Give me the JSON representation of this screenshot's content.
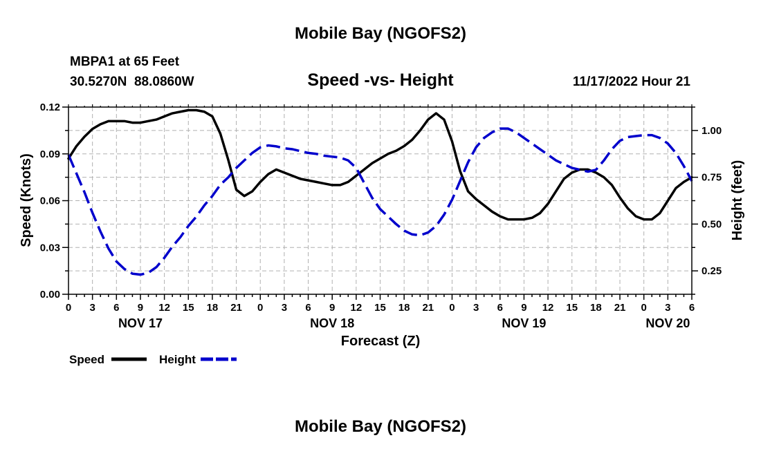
{
  "chart_data": {
    "type": "line",
    "title": "Mobile Bay (NGOFS2)",
    "footer_title": "Mobile Bay (NGOFS2)",
    "station": "MBPA1 at 65 Feet",
    "coordinates": "30.5270N  88.0860W",
    "subtitle": "Speed -vs- Height",
    "timestamp": "11/17/2022 Hour 21",
    "xlabel": "Forecast (Z)",
    "ylabel_left": "Speed (Knots)",
    "ylabel_right": "Height (feet)",
    "ylim_left": [
      0,
      0.12
    ],
    "ylim_right": [
      0.125,
      1.125
    ],
    "xlim_hours": [
      0,
      78
    ],
    "left_ticks": [
      "0.00",
      "0.03",
      "0.06",
      "0.09",
      "0.12"
    ],
    "right_ticks": [
      "0.25",
      "0.50",
      "0.75",
      "1.00"
    ],
    "hour_ticks": [
      "0",
      "3",
      "6",
      "9",
      "12",
      "15",
      "18",
      "21",
      "0",
      "3",
      "6",
      "9",
      "12",
      "15",
      "18",
      "21",
      "0",
      "3",
      "6",
      "9",
      "12",
      "15",
      "18",
      "21",
      "0",
      "3",
      "6"
    ],
    "date_labels": [
      "NOV 17",
      "NOV 18",
      "NOV 19",
      "NOV 20"
    ],
    "date_label_hours": [
      9,
      33,
      57,
      75
    ],
    "grid": true,
    "series": [
      {
        "name": "Speed",
        "axis": "left",
        "color": "#000000",
        "dash": "solid",
        "x": [
          0,
          1,
          2,
          3,
          4,
          5,
          6,
          7,
          8,
          9,
          10,
          11,
          12,
          13,
          14,
          15,
          16,
          17,
          18,
          19,
          20,
          21,
          22,
          23,
          24,
          25,
          26,
          27,
          28,
          29,
          30,
          31,
          32,
          33,
          34,
          35,
          36,
          37,
          38,
          39,
          40,
          41,
          42,
          43,
          44,
          45,
          46,
          47,
          48,
          49,
          50,
          51,
          52,
          53,
          54,
          55,
          56,
          57,
          58,
          59,
          60,
          61,
          62,
          63,
          64,
          65,
          66,
          67,
          68,
          69,
          70,
          71,
          72,
          73,
          74,
          75,
          76,
          77,
          78
        ],
        "values": [
          0.087,
          0.095,
          0.101,
          0.106,
          0.109,
          0.111,
          0.111,
          0.111,
          0.11,
          0.11,
          0.111,
          0.112,
          0.114,
          0.116,
          0.117,
          0.118,
          0.118,
          0.117,
          0.114,
          0.103,
          0.086,
          0.067,
          0.063,
          0.066,
          0.072,
          0.077,
          0.08,
          0.078,
          0.076,
          0.074,
          0.073,
          0.072,
          0.071,
          0.07,
          0.07,
          0.072,
          0.076,
          0.08,
          0.084,
          0.087,
          0.09,
          0.092,
          0.095,
          0.099,
          0.105,
          0.112,
          0.116,
          0.112,
          0.098,
          0.079,
          0.066,
          0.061,
          0.057,
          0.053,
          0.05,
          0.048,
          0.048,
          0.048,
          0.049,
          0.052,
          0.058,
          0.066,
          0.074,
          0.078,
          0.08,
          0.08,
          0.078,
          0.075,
          0.07,
          0.062,
          0.055,
          0.05,
          0.048,
          0.048,
          0.052,
          0.06,
          0.068,
          0.072,
          0.075
        ]
      },
      {
        "name": "Height",
        "axis": "right",
        "color": "#0000cc",
        "dash": "dashed",
        "x": [
          0,
          1,
          2,
          3,
          4,
          5,
          6,
          7,
          8,
          9,
          10,
          11,
          12,
          13,
          14,
          15,
          16,
          17,
          18,
          19,
          20,
          21,
          22,
          23,
          24,
          25,
          26,
          27,
          28,
          29,
          30,
          31,
          32,
          33,
          34,
          35,
          36,
          37,
          38,
          39,
          40,
          41,
          42,
          43,
          44,
          45,
          46,
          47,
          48,
          49,
          50,
          51,
          52,
          53,
          54,
          55,
          56,
          57,
          58,
          59,
          60,
          61,
          62,
          63,
          64,
          65,
          66,
          67,
          68,
          69,
          70,
          71,
          72,
          73,
          74,
          75,
          76,
          77,
          78
        ],
        "values": [
          0.87,
          0.77,
          0.67,
          0.56,
          0.46,
          0.37,
          0.3,
          0.26,
          0.235,
          0.23,
          0.24,
          0.27,
          0.32,
          0.38,
          0.43,
          0.49,
          0.54,
          0.6,
          0.65,
          0.71,
          0.75,
          0.8,
          0.84,
          0.88,
          0.91,
          0.92,
          0.915,
          0.905,
          0.9,
          0.89,
          0.88,
          0.875,
          0.865,
          0.86,
          0.855,
          0.84,
          0.8,
          0.72,
          0.64,
          0.58,
          0.54,
          0.5,
          0.465,
          0.445,
          0.44,
          0.455,
          0.49,
          0.55,
          0.63,
          0.73,
          0.83,
          0.91,
          0.96,
          0.99,
          1.01,
          1.01,
          0.99,
          0.96,
          0.93,
          0.9,
          0.87,
          0.84,
          0.82,
          0.8,
          0.79,
          0.78,
          0.79,
          0.84,
          0.9,
          0.945,
          0.965,
          0.97,
          0.975,
          0.975,
          0.96,
          0.93,
          0.88,
          0.81,
          0.73
        ]
      }
    ]
  },
  "legend": {
    "speed_label": "Speed",
    "height_label": "Height"
  }
}
